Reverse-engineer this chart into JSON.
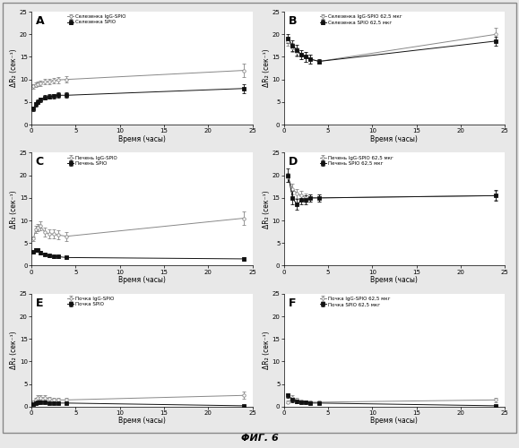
{
  "panels": [
    {
      "label": "A",
      "legend1": "Селезенка IgG-SPIO",
      "legend2": "Селезенка SPIO",
      "series1": {
        "x": [
          0.25,
          0.5,
          0.75,
          1.0,
          1.5,
          2.0,
          2.5,
          3.0,
          4.0,
          24.0
        ],
        "y": [
          8.5,
          8.8,
          9.0,
          9.2,
          9.5,
          9.6,
          9.8,
          9.9,
          10.0,
          12.0
        ],
        "yerr": [
          0.5,
          0.5,
          0.5,
          0.6,
          0.6,
          0.6,
          0.6,
          0.7,
          0.7,
          1.5
        ]
      },
      "series2": {
        "x": [
          0.25,
          0.5,
          0.75,
          1.0,
          1.5,
          2.0,
          2.5,
          3.0,
          4.0,
          24.0
        ],
        "y": [
          3.5,
          4.5,
          5.0,
          5.5,
          6.0,
          6.2,
          6.3,
          6.5,
          6.5,
          8.0
        ],
        "yerr": [
          0.5,
          0.5,
          0.5,
          0.5,
          0.5,
          0.5,
          0.5,
          0.6,
          0.6,
          1.0
        ]
      }
    },
    {
      "label": "B",
      "legend1": "Селезенка IgG-SPIO 62,5 мкг",
      "legend2": "Селезенка SPIO 62,5 мкг",
      "series1": {
        "x": [
          0.5,
          1.0,
          1.5,
          2.0,
          2.5,
          3.0,
          4.0,
          24.0
        ],
        "y": [
          18.5,
          17.0,
          16.0,
          15.5,
          15.0,
          14.5,
          14.0,
          20.0
        ],
        "yerr": [
          1.0,
          1.0,
          1.0,
          1.0,
          1.0,
          1.0,
          0.5,
          1.5
        ]
      },
      "series2": {
        "x": [
          0.5,
          1.0,
          1.5,
          2.0,
          2.5,
          3.0,
          4.0,
          24.0
        ],
        "y": [
          19.0,
          17.5,
          16.5,
          15.5,
          15.0,
          14.5,
          14.0,
          18.5
        ],
        "yerr": [
          1.0,
          1.2,
          1.2,
          1.0,
          1.0,
          1.0,
          0.5,
          1.0
        ]
      }
    },
    {
      "label": "C",
      "legend1": "Печень IgG-SPIO",
      "legend2": "Печень SPIO",
      "series1": {
        "x": [
          0.25,
          0.5,
          0.75,
          1.0,
          1.5,
          2.0,
          2.5,
          3.0,
          4.0,
          24.0
        ],
        "y": [
          6.0,
          8.0,
          8.5,
          8.8,
          7.5,
          7.0,
          7.0,
          6.8,
          6.5,
          10.5
        ],
        "yerr": [
          0.5,
          0.8,
          0.8,
          1.0,
          1.0,
          1.0,
          1.0,
          1.0,
          1.0,
          1.5
        ]
      },
      "series2": {
        "x": [
          0.25,
          0.5,
          0.75,
          1.0,
          1.5,
          2.0,
          2.5,
          3.0,
          4.0,
          24.0
        ],
        "y": [
          3.0,
          3.5,
          3.5,
          2.8,
          2.5,
          2.2,
          2.0,
          2.0,
          1.8,
          1.5
        ],
        "yerr": [
          0.3,
          0.4,
          0.4,
          0.4,
          0.3,
          0.3,
          0.3,
          0.3,
          0.3,
          0.4
        ]
      }
    },
    {
      "label": "D",
      "legend1": "Печень IgG-SPIO 62,5 мкг",
      "legend2": "Печень SPIO 62,5 мкг",
      "series1": {
        "x": [
          0.5,
          1.0,
          1.5,
          2.0,
          2.5,
          3.0,
          4.0,
          24.0
        ],
        "y": [
          19.5,
          17.0,
          16.0,
          15.5,
          15.0,
          15.0,
          15.0,
          15.5
        ],
        "yerr": [
          1.0,
          1.2,
          1.0,
          1.0,
          1.0,
          0.8,
          0.8,
          1.0
        ]
      },
      "series2": {
        "x": [
          0.5,
          1.0,
          1.5,
          2.0,
          2.5,
          3.0,
          4.0,
          24.0
        ],
        "y": [
          20.0,
          15.0,
          13.5,
          14.5,
          14.5,
          15.0,
          15.0,
          15.5
        ],
        "yerr": [
          1.5,
          1.5,
          1.2,
          1.0,
          1.0,
          0.8,
          0.8,
          1.2
        ]
      }
    },
    {
      "label": "E",
      "legend1": "Почка IgG-SPIO",
      "legend2": "Почка SPIO",
      "series1": {
        "x": [
          0.25,
          0.5,
          0.75,
          1.0,
          1.5,
          2.0,
          2.5,
          3.0,
          4.0,
          24.0
        ],
        "y": [
          1.0,
          1.5,
          2.0,
          2.0,
          2.0,
          1.8,
          1.5,
          1.5,
          1.5,
          2.5
        ],
        "yerr": [
          0.3,
          0.4,
          0.5,
          0.5,
          0.5,
          0.4,
          0.4,
          0.4,
          0.4,
          0.8
        ]
      },
      "series2": {
        "x": [
          0.25,
          0.5,
          0.75,
          1.0,
          1.5,
          2.0,
          2.5,
          3.0,
          4.0,
          24.0
        ],
        "y": [
          0.5,
          0.8,
          1.0,
          1.0,
          1.0,
          0.8,
          0.8,
          0.8,
          0.8,
          0.2
        ],
        "yerr": [
          0.2,
          0.3,
          0.3,
          0.3,
          0.3,
          0.2,
          0.2,
          0.2,
          0.2,
          0.2
        ]
      }
    },
    {
      "label": "F",
      "legend1": "Почка IgG-SPIO 62,5 мкг",
      "legend2": "Почка SPIO 62,5 мкг",
      "series1": {
        "x": [
          0.5,
          1.0,
          1.5,
          2.0,
          2.5,
          3.0,
          4.0,
          24.0
        ],
        "y": [
          1.0,
          2.0,
          1.5,
          1.2,
          1.0,
          1.0,
          1.0,
          1.5
        ],
        "yerr": [
          0.3,
          0.5,
          0.4,
          0.3,
          0.3,
          0.3,
          0.3,
          0.5
        ]
      },
      "series2": {
        "x": [
          0.5,
          1.0,
          1.5,
          2.0,
          2.5,
          3.0,
          4.0,
          24.0
        ],
        "y": [
          2.5,
          1.5,
          1.2,
          1.0,
          1.0,
          0.8,
          0.8,
          0.2
        ],
        "yerr": [
          0.5,
          0.5,
          0.4,
          0.3,
          0.3,
          0.2,
          0.2,
          0.1
        ]
      }
    }
  ],
  "ylabel": "ΔR₂ (сек⁻¹)",
  "xlabel": "Время (часы)",
  "fig_label": "ΦИГ. 6",
  "ylim": [
    0,
    25
  ],
  "xlim": [
    0,
    25
  ],
  "xticks": [
    0,
    5,
    10,
    15,
    20,
    25
  ],
  "yticks": [
    0,
    5,
    10,
    15,
    20,
    25
  ],
  "color1": "#888888",
  "color2": "#111111",
  "fig_bg": "#ffffff",
  "panel_bg": "#ffffff",
  "border_color": "#aaaaaa"
}
